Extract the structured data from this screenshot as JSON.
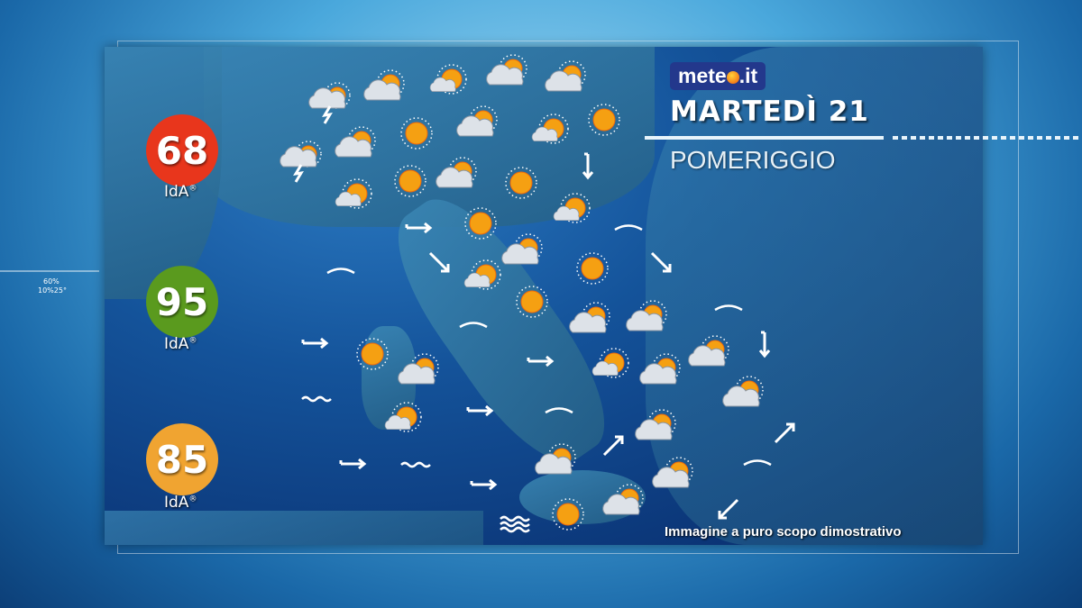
{
  "brand": {
    "logo_text_left": "mete",
    "logo_text_right": ".it"
  },
  "header": {
    "day": "MARTEDÌ 21",
    "period": "POMERIGGIO"
  },
  "disclaimer": "Immagine a puro scopo dimostrativo",
  "ida_indices": [
    {
      "value": "68",
      "label": "IdA",
      "mark": "®",
      "color": "#e8361c"
    },
    {
      "value": "95",
      "label": "IdA",
      "mark": "®",
      "color": "#5a9a1e"
    },
    {
      "value": "85",
      "label": "IdA",
      "mark": "®",
      "color": "#f0a431"
    }
  ],
  "side_readout": {
    "humidity": "60%",
    "values": "10%25°"
  },
  "colors": {
    "sun": "#f5a012",
    "cloud": "#d8dde4",
    "sea": "#0b3577",
    "logo_bg": "#23388c"
  },
  "map_symbols": [
    "storm",
    "cloud-sun",
    "sun-cloud",
    "cloud-sun",
    "cloud-sun",
    "storm",
    "cloud-sun",
    "sun",
    "cloud-sun",
    "sun-cloud",
    "sun",
    "sun-cloud",
    "sun",
    "cloud-sun",
    "sun",
    "sun-cloud",
    "sun",
    "cloud-sun",
    "sun-cloud",
    "sun",
    "sun",
    "cloud-sun",
    "cloud-sun",
    "sun",
    "cloud-sun",
    "sun-cloud",
    "cloud-sun",
    "cloud-sun",
    "cloud-sun",
    "sun-cloud",
    "cloud-sun",
    "cloud-sun",
    "cloud-sun",
    "cloud-sun",
    "sun",
    "arrow-right",
    "arrow-down-right",
    "arrow-down",
    "arrow-down-right",
    "arrow-right",
    "arrow-right",
    "arrow-down",
    "arrow-right",
    "arrow-right",
    "arrow-right",
    "arrow-up-right",
    "arrow-up-right",
    "arrow-down-left",
    "sea-slight",
    "sea-slight",
    "sea-slight",
    "sea-slight",
    "sea-moderate",
    "sea-slight",
    "sea-moderate",
    "sea-slight",
    "sea-rough"
  ]
}
